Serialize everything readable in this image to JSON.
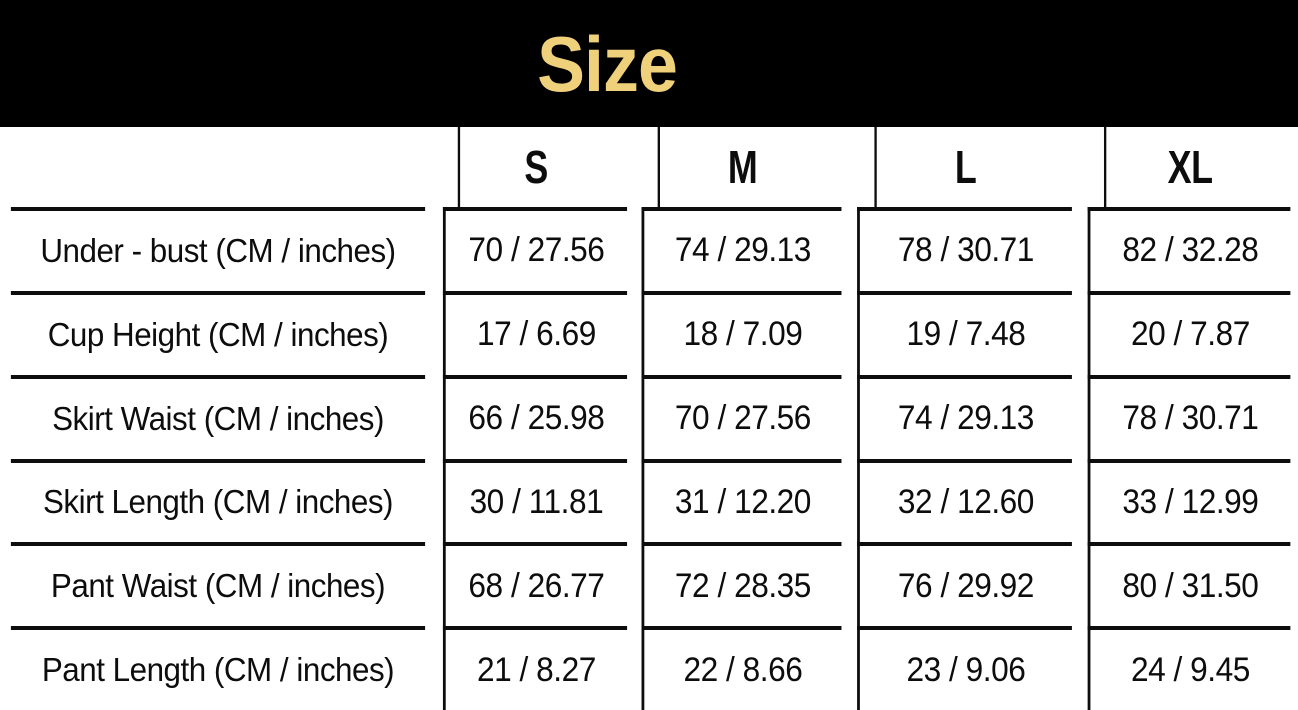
{
  "colors": {
    "banner_bg": "#000000",
    "title_gold": "#F0D17B",
    "grid_line": "#0d0d0d",
    "text": "#0d0d0d",
    "background": "#ffffff"
  },
  "chart_data": {
    "type": "table",
    "title": "Size",
    "columns": [
      "S",
      "M",
      "L",
      "XL"
    ],
    "rows": [
      {
        "label": "Under - bust (CM / inches)",
        "values": [
          "70 / 27.56",
          "74 / 29.13",
          "78 / 30.71",
          "82 / 32.28"
        ]
      },
      {
        "label": "Cup Height (CM / inches)",
        "values": [
          "17 / 6.69",
          "18 / 7.09",
          "19 / 7.48",
          "20 / 7.87"
        ]
      },
      {
        "label": "Skirt Waist (CM / inches)",
        "values": [
          "66 / 25.98",
          "70 / 27.56",
          "74 / 29.13",
          "78 / 30.71"
        ]
      },
      {
        "label": "Skirt Length (CM / inches)",
        "values": [
          "30 / 11.81",
          "31 / 12.20",
          "32 / 12.60",
          "33 / 12.99"
        ]
      },
      {
        "label": "Pant Waist (CM / inches)",
        "values": [
          "68 / 26.77",
          "72 / 28.35",
          "76 / 29.92",
          "80 / 31.50"
        ]
      },
      {
        "label": "Pant Length (CM / inches)",
        "values": [
          "21 / 8.27",
          "22 / 8.66",
          "23 / 9.06",
          "24 / 9.45"
        ]
      }
    ]
  }
}
